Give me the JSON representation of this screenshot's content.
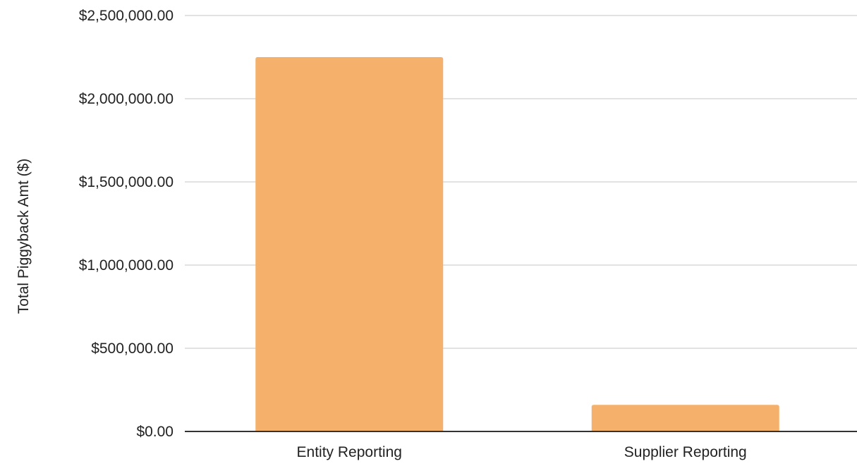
{
  "chart_data": {
    "type": "bar",
    "categories": [
      "Entity Reporting",
      "Supplier Reporting"
    ],
    "values": [
      2250000,
      160000
    ],
    "title": "",
    "xlabel": "",
    "ylabel": "Total Piggyback Amt ($)",
    "ylim": [
      0,
      2500000
    ],
    "yticks": [
      0,
      500000,
      1000000,
      1500000,
      2000000,
      2500000
    ],
    "ytick_labels": [
      "$0.00",
      "$500,000.00",
      "$1,000,000.00",
      "$1,500,000.00",
      "$2,000,000.00",
      "$2,500,000.00"
    ],
    "grid": true,
    "legend": "none",
    "colors": {
      "bar": "#f5b06b",
      "grid": "#d9d9d9",
      "baseline": "#333333"
    }
  }
}
